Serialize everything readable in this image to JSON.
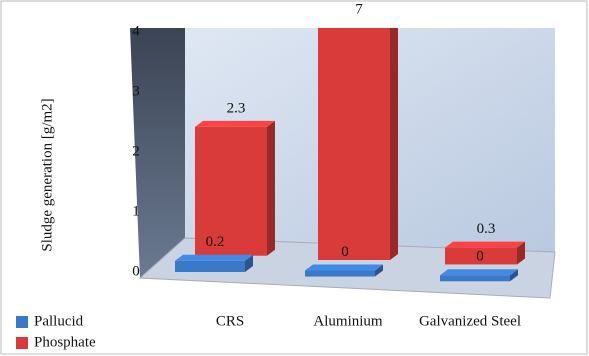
{
  "chart_data": {
    "type": "bar3d",
    "y_label": "Sludge generation [g/m2]",
    "categories": [
      "CRS",
      "Aluminium",
      "Galvanized Steel"
    ],
    "series": [
      {
        "name": "Pallucid",
        "color": "#3a78c8",
        "values": [
          0.2,
          0,
          0
        ]
      },
      {
        "name": "Phosphate",
        "color": "#d93a3a",
        "values": [
          2.3,
          7,
          0.3
        ]
      }
    ],
    "ylim": [
      0,
      4
    ],
    "yticks": [
      0,
      1,
      2,
      3,
      4
    ],
    "legend": "bottom-left"
  }
}
